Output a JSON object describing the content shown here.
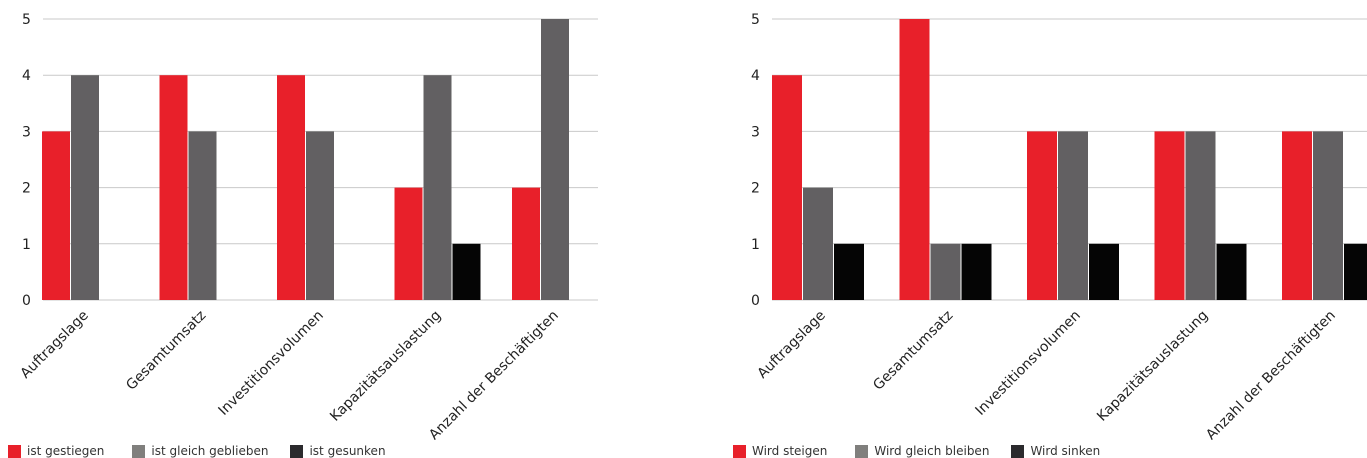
{
  "colors": {
    "red": "#e8202a",
    "gray": "#626062",
    "black": "#050505",
    "legend_gray": "#807f7d",
    "legend_black": "#2b2a2d"
  },
  "chart_data": [
    {
      "type": "bar",
      "categories": [
        "Auftragslage",
        "Gesamtumsatz",
        "Investitionsvolumen",
        "Kapazitätsauslastung",
        "Anzahl der Beschäftigten"
      ],
      "series": [
        {
          "name": "ist gestiegen",
          "values": [
            3,
            4,
            4,
            2,
            2
          ]
        },
        {
          "name": "ist gleich geblieben",
          "values": [
            4,
            3,
            3,
            4,
            5
          ]
        },
        {
          "name": "ist gesunken",
          "values": [
            0,
            0,
            0,
            1,
            0
          ]
        }
      ],
      "ylim": [
        0,
        5
      ],
      "yticks": [
        "0",
        "1",
        "2",
        "3",
        "4",
        "5"
      ],
      "grid": true,
      "legend": "bottom-left"
    },
    {
      "type": "bar",
      "categories": [
        "Auftragslage",
        "Gesamtumsatz",
        "Investitionsvolumen",
        "Kapazitätsauslastung",
        "Anzahl der Beschäftigten"
      ],
      "series": [
        {
          "name": "Wird steigen",
          "values": [
            4,
            5,
            3,
            3,
            3
          ]
        },
        {
          "name": "Wird gleich bleiben",
          "values": [
            2,
            1,
            3,
            3,
            3
          ]
        },
        {
          "name": "Wird sinken",
          "values": [
            1,
            1,
            1,
            1,
            1
          ]
        }
      ],
      "ylim": [
        0,
        5
      ],
      "yticks": [
        "0",
        "1",
        "2",
        "3",
        "4",
        "5"
      ],
      "grid": true,
      "legend": "bottom-left"
    }
  ]
}
